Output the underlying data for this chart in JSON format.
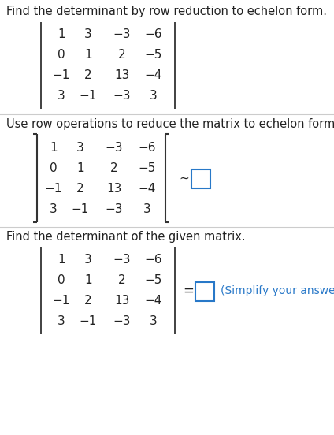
{
  "bg_color": "#ffffff",
  "text_color": "#222222",
  "blue_color": "#2878c8",
  "title1": "Find the determinant by row reduction to echelon form.",
  "title2": "Use row operations to reduce the matrix to echelon form.",
  "title3": "Find the determinant of the given matrix.",
  "matrix_rows": [
    [
      "1",
      "3",
      "−3",
      "−6"
    ],
    [
      "0",
      "1",
      "2",
      "−5"
    ],
    [
      "−1",
      "2",
      "13",
      "−4"
    ],
    [
      "3",
      "−1",
      "−3",
      "3"
    ]
  ],
  "tilde_symbol": "~",
  "equals_symbol": "=",
  "simplify_text": "(Simplify your answer.)",
  "font_size_title": 10.5,
  "font_size_matrix": 11,
  "font_size_annot": 10,
  "divider_color": "#cccccc",
  "bar_color": "#333333",
  "bracket_color": "#333333"
}
